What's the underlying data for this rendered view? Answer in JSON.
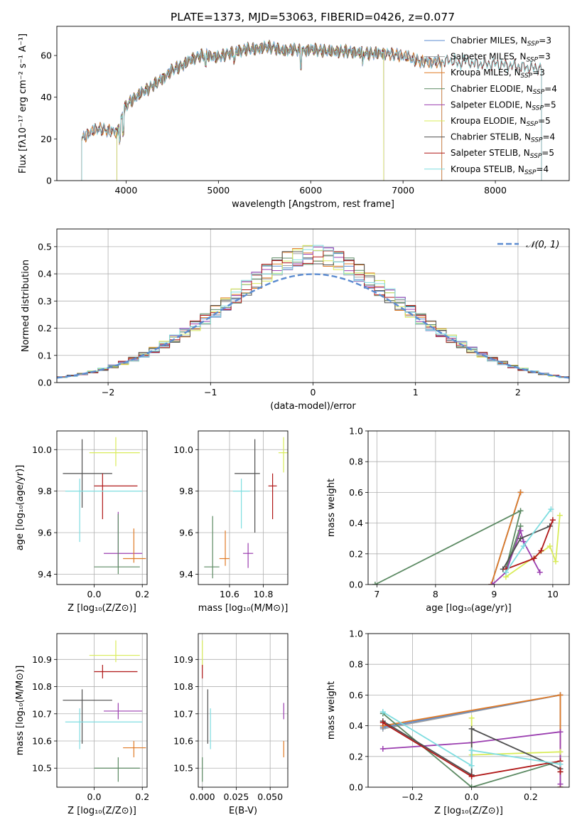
{
  "title": "PLATE=1373, MJD=53063, FIBERID=0426, z=0.077",
  "colors": {
    "c0": "#5b8bd0",
    "c1": "#a0a0a0",
    "c2": "#e07b27",
    "c3": "#5c8a63",
    "c4": "#9b3fb0",
    "c5": "#d9ec5a",
    "c6": "#4f4f4f",
    "c7": "#b01818",
    "c8": "#7fdde0"
  },
  "chart_data": [
    {
      "id": "spectrum",
      "type": "line",
      "xlabel": "wavelength [Angstrom, rest frame]",
      "ylabel": "Flux [fλ10⁻¹⁷ erg cm⁻² s⁻¹ A⁻¹]",
      "xlim": [
        3250,
        8800
      ],
      "ylim": [
        0,
        74
      ],
      "xticks": [
        4000,
        5000,
        6000,
        7000,
        8000
      ],
      "yticks": [
        0,
        20,
        40,
        60
      ],
      "grid": false,
      "legend_position": "top-right",
      "spectrum_profile": [
        [
          3520,
          20
        ],
        [
          3600,
          23
        ],
        [
          3700,
          25
        ],
        [
          3800,
          24
        ],
        [
          3900,
          23
        ],
        [
          3950,
          30
        ],
        [
          4000,
          36
        ],
        [
          4100,
          40
        ],
        [
          4200,
          43
        ],
        [
          4300,
          46
        ],
        [
          4400,
          49
        ],
        [
          4500,
          53
        ],
        [
          4600,
          55
        ],
        [
          4700,
          58
        ],
        [
          4800,
          60
        ],
        [
          4900,
          60
        ],
        [
          5000,
          59
        ],
        [
          5100,
          61
        ],
        [
          5200,
          62
        ],
        [
          5300,
          63
        ],
        [
          5400,
          63
        ],
        [
          5500,
          64
        ],
        [
          5600,
          64
        ],
        [
          5700,
          62
        ],
        [
          5800,
          63
        ],
        [
          5900,
          62
        ],
        [
          6000,
          63
        ],
        [
          6200,
          62
        ],
        [
          6400,
          62
        ],
        [
          6600,
          61
        ],
        [
          6800,
          61
        ],
        [
          7000,
          60
        ],
        [
          7200,
          57
        ],
        [
          7400,
          57
        ],
        [
          7600,
          58
        ],
        [
          7800,
          56
        ],
        [
          8000,
          56
        ],
        [
          8200,
          55
        ],
        [
          8400,
          54
        ],
        [
          8500,
          54
        ]
      ],
      "series": [
        {
          "name": "Chabrier MILES, N_SSP=3",
          "color": "c0",
          "xmin": 3520,
          "xmax": 7420
        },
        {
          "name": "Salpeter MILES, N_SSP=3",
          "color": "c1",
          "xmin": 3520,
          "xmax": 7420
        },
        {
          "name": "Kroupa MILES, N_SSP=3",
          "color": "c2",
          "xmin": 3520,
          "xmax": 7420
        },
        {
          "name": "Chabrier ELODIE, N_SSP=4",
          "color": "c3",
          "xmin": 3900,
          "xmax": 6790
        },
        {
          "name": "Salpeter ELODIE, N_SSP=5",
          "color": "c4",
          "xmin": 3900,
          "xmax": 6790
        },
        {
          "name": "Kroupa ELODIE, N_SSP=5",
          "color": "c5",
          "xmin": 3900,
          "xmax": 6790
        },
        {
          "name": "Chabrier STELIB, N_SSP=4",
          "color": "c6",
          "xmin": 3520,
          "xmax": 8500
        },
        {
          "name": "Salpeter STELIB, N_SSP=5",
          "color": "c7",
          "xmin": 3520,
          "xmax": 8500
        },
        {
          "name": "Kroupa STELIB, N_SSP=4",
          "color": "c8",
          "xmin": 3520,
          "xmax": 8500
        }
      ]
    },
    {
      "id": "residuals",
      "type": "line",
      "xlabel": "(data-model)/error",
      "ylabel": "Normed distribution",
      "xlim": [
        -2.5,
        2.5
      ],
      "ylim": [
        0,
        0.565
      ],
      "xticks": [
        -2,
        -1,
        0,
        1,
        2
      ],
      "yticks": [
        0.0,
        0.1,
        0.2,
        0.3,
        0.4,
        0.5
      ],
      "grid": true,
      "legend_position": "top-right",
      "gaussian_label": "𝒩(0, 1)",
      "gaussian_color": "c0",
      "hist_colors": [
        "c0",
        "c1",
        "c2",
        "c3",
        "c4",
        "c5",
        "c6",
        "c7",
        "c8"
      ],
      "bin_width": 0.1
    },
    {
      "id": "age_vs_Z",
      "type": "scatter",
      "xlabel": "Z [log₁₀(Z/Z⊙)]",
      "ylabel": "age  [log₁₀(age/yr)]",
      "xlim": [
        -0.155,
        0.22
      ],
      "ylim": [
        9.35,
        10.09
      ],
      "xticks": [
        0.0,
        0.2
      ],
      "yticks": [
        9.4,
        9.6,
        9.8,
        10.0
      ],
      "grid": true,
      "points": [
        {
          "color": "c5",
          "x": 0.09,
          "y": 9.985,
          "xlo": -0.02,
          "xhi": 0.19,
          "ylo": 9.92,
          "yhi": 10.06
        },
        {
          "color": "c6",
          "x": -0.05,
          "y": 9.885,
          "xlo": -0.13,
          "xhi": 0.075,
          "ylo": 9.72,
          "yhi": 10.05
        },
        {
          "color": "c7",
          "x": 0.035,
          "y": 9.825,
          "xlo": 0.0,
          "xhi": 0.18,
          "ylo": 9.665,
          "yhi": 9.885
        },
        {
          "color": "c8",
          "x": -0.06,
          "y": 9.8,
          "xlo": -0.12,
          "xhi": 0.2,
          "ylo": 9.555,
          "yhi": 9.86
        },
        {
          "color": "c4",
          "x": 0.1,
          "y": 9.5,
          "xlo": 0.04,
          "xhi": 0.2,
          "ylo": 9.44,
          "yhi": 9.7
        },
        {
          "color": "c2",
          "x": 0.165,
          "y": 9.475,
          "xlo": 0.12,
          "xhi": 0.215,
          "ylo": 9.455,
          "yhi": 9.62
        },
        {
          "color": "c3",
          "x": 0.1,
          "y": 9.435,
          "xlo": 0.0,
          "xhi": 0.19,
          "ylo": 9.4,
          "yhi": 9.69
        }
      ]
    },
    {
      "id": "age_vs_mass",
      "type": "scatter",
      "xlabel": "mass [log₁₀(M/M⊙)]",
      "ylabel": "",
      "xlim": [
        10.415,
        10.945
      ],
      "ylim": [
        9.35,
        10.09
      ],
      "xticks": [
        10.6,
        10.8
      ],
      "yticks": [
        9.4,
        9.6,
        9.8,
        10.0
      ],
      "grid": true,
      "points": [
        {
          "color": "c5",
          "x": 10.92,
          "y": 9.985,
          "xlo": 10.89,
          "xhi": 10.945,
          "ylo": 9.89,
          "yhi": 10.06
        },
        {
          "color": "c6",
          "x": 10.75,
          "y": 9.885,
          "xlo": 10.63,
          "xhi": 10.78,
          "ylo": 9.6,
          "yhi": 10.05
        },
        {
          "color": "c7",
          "x": 10.855,
          "y": 9.825,
          "xlo": 10.83,
          "xhi": 10.88,
          "ylo": 9.665,
          "yhi": 9.885
        },
        {
          "color": "c8",
          "x": 10.67,
          "y": 9.8,
          "xlo": 10.62,
          "xhi": 10.72,
          "ylo": 9.62,
          "yhi": 9.86
        },
        {
          "color": "c4",
          "x": 10.71,
          "y": 9.5,
          "xlo": 10.68,
          "xhi": 10.74,
          "ylo": 9.43,
          "yhi": 9.55
        },
        {
          "color": "c2",
          "x": 10.575,
          "y": 9.475,
          "xlo": 10.54,
          "xhi": 10.6,
          "ylo": 9.44,
          "yhi": 9.61
        },
        {
          "color": "c3",
          "x": 10.5,
          "y": 9.435,
          "xlo": 10.45,
          "xhi": 10.54,
          "ylo": 9.38,
          "yhi": 9.68
        }
      ]
    },
    {
      "id": "mass_weight_vs_age",
      "type": "line",
      "xlabel": "age  [log₁₀(age/yr)]",
      "ylabel": "mass weight",
      "xlim": [
        6.85,
        10.28
      ],
      "ylim": [
        0,
        1
      ],
      "xticks": [
        7,
        8,
        9,
        10
      ],
      "yticks": [
        0.0,
        0.2,
        0.4,
        0.6,
        0.8,
        1.0
      ],
      "grid": true,
      "series": [
        {
          "color": "c1",
          "points": [
            [
              8.95,
              0.0
            ],
            [
              9.45,
              0.6
            ]
          ]
        },
        {
          "color": "c0",
          "points": [
            [
              8.95,
              0.0
            ],
            [
              9.45,
              0.6
            ]
          ]
        },
        {
          "color": "c2",
          "points": [
            [
              8.95,
              0.0
            ],
            [
              9.45,
              0.6
            ]
          ]
        },
        {
          "color": "c3",
          "points": [
            [
              6.97,
              0.0
            ],
            [
              9.45,
              0.48
            ],
            [
              9.2,
              0.1
            ],
            [
              9.45,
              0.38
            ]
          ]
        },
        {
          "color": "c4",
          "points": [
            [
              8.97,
              0.0
            ],
            [
              9.2,
              0.08
            ],
            [
              9.45,
              0.35
            ],
            [
              9.5,
              0.28
            ],
            [
              9.78,
              0.08
            ]
          ]
        },
        {
          "color": "c5",
          "points": [
            [
              9.2,
              0.05
            ],
            [
              9.95,
              0.25
            ],
            [
              10.05,
              0.15
            ],
            [
              10.12,
              0.45
            ]
          ]
        },
        {
          "color": "c6",
          "points": [
            [
              9.15,
              0.1
            ],
            [
              9.45,
              0.3
            ],
            [
              9.95,
              0.38
            ]
          ]
        },
        {
          "color": "c7",
          "points": [
            [
              9.2,
              0.1
            ],
            [
              9.68,
              0.17
            ],
            [
              9.8,
              0.22
            ],
            [
              10.0,
              0.42
            ]
          ]
        },
        {
          "color": "c8",
          "points": [
            [
              9.2,
              0.08
            ],
            [
              9.5,
              0.25
            ],
            [
              9.97,
              0.49
            ]
          ]
        }
      ]
    },
    {
      "id": "mass_vs_Z",
      "type": "scatter",
      "xlabel": "Z [log₁₀(Z/Z⊙)]",
      "ylabel": "mass [log₁₀(M/M⊙)]",
      "xlim": [
        -0.155,
        0.22
      ],
      "ylim": [
        10.43,
        10.995
      ],
      "xticks": [
        0.0,
        0.2
      ],
      "yticks": [
        10.5,
        10.6,
        10.7,
        10.8,
        10.9
      ],
      "grid": true,
      "points": [
        {
          "color": "c5",
          "x": 0.09,
          "y": 10.915,
          "xlo": -0.02,
          "xhi": 0.19,
          "ylo": 10.89,
          "yhi": 10.97
        },
        {
          "color": "c7",
          "x": 0.035,
          "y": 10.855,
          "xlo": 0.0,
          "xhi": 0.18,
          "ylo": 10.83,
          "yhi": 10.88
        },
        {
          "color": "c6",
          "x": -0.05,
          "y": 10.75,
          "xlo": -0.13,
          "xhi": 0.075,
          "ylo": 10.59,
          "yhi": 10.79
        },
        {
          "color": "c4",
          "x": 0.1,
          "y": 10.71,
          "xlo": 0.04,
          "xhi": 0.2,
          "ylo": 10.68,
          "yhi": 10.74
        },
        {
          "color": "c8",
          "x": -0.06,
          "y": 10.67,
          "xlo": -0.12,
          "xhi": 0.2,
          "ylo": 10.57,
          "yhi": 10.72
        },
        {
          "color": "c2",
          "x": 0.165,
          "y": 10.575,
          "xlo": 0.12,
          "xhi": 0.215,
          "ylo": 10.54,
          "yhi": 10.6
        },
        {
          "color": "c3",
          "x": 0.1,
          "y": 10.5,
          "xlo": 0.0,
          "xhi": 0.19,
          "ylo": 10.45,
          "yhi": 10.54
        }
      ]
    },
    {
      "id": "mass_vs_ebv",
      "type": "scatter",
      "xlabel": "E(B-V)",
      "ylabel": "",
      "xlim": [
        -0.003,
        0.063
      ],
      "ylim": [
        10.43,
        10.995
      ],
      "xticks": [
        0.0,
        0.025,
        0.05
      ],
      "yticks": [
        10.5,
        10.6,
        10.7,
        10.8,
        10.9
      ],
      "grid": true,
      "points": [
        {
          "color": "c5",
          "x": 0.0,
          "y": 10.915,
          "xlo": 0.0,
          "xhi": 0.0,
          "ylo": 10.87,
          "yhi": 10.97
        },
        {
          "color": "c7",
          "x": 0.0,
          "y": 10.855,
          "xlo": 0.0,
          "xhi": 0.0,
          "ylo": 10.83,
          "yhi": 10.88
        },
        {
          "color": "c6",
          "x": 0.004,
          "y": 10.75,
          "xlo": 0.004,
          "xhi": 0.004,
          "ylo": 10.59,
          "yhi": 10.79
        },
        {
          "color": "c4",
          "x": 0.06,
          "y": 10.71,
          "xlo": 0.06,
          "xhi": 0.06,
          "ylo": 10.68,
          "yhi": 10.74
        },
        {
          "color": "c8",
          "x": 0.006,
          "y": 10.67,
          "xlo": 0.006,
          "xhi": 0.006,
          "ylo": 10.57,
          "yhi": 10.72
        },
        {
          "color": "c2",
          "x": 0.06,
          "y": 10.575,
          "xlo": 0.06,
          "xhi": 0.06,
          "ylo": 10.54,
          "yhi": 10.6
        },
        {
          "color": "c3",
          "x": 0.0,
          "y": 10.5,
          "xlo": 0.0,
          "xhi": 0.0,
          "ylo": 10.45,
          "yhi": 10.54
        }
      ]
    },
    {
      "id": "mass_weight_vs_Z",
      "type": "line",
      "xlabel": "Z [log₁₀(Z/Z⊙)]",
      "ylabel": "mass weight",
      "xlim": [
        -0.35,
        0.33
      ],
      "ylim": [
        0,
        1
      ],
      "xticks": [
        -0.2,
        0.0,
        0.2
      ],
      "yticks": [
        0.0,
        0.2,
        0.4,
        0.6,
        0.8,
        1.0
      ],
      "grid": true,
      "series": [
        {
          "color": "c1",
          "points": [
            [
              -0.3,
              0.38
            ],
            [
              0.3,
              0.6
            ],
            [
              0.3,
              0.0
            ]
          ]
        },
        {
          "color": "c0",
          "points": [
            [
              -0.3,
              0.39
            ],
            [
              0.3,
              0.6
            ],
            [
              0.3,
              0.0
            ]
          ]
        },
        {
          "color": "c2",
          "points": [
            [
              -0.3,
              0.4
            ],
            [
              0.3,
              0.6
            ],
            [
              0.3,
              0.0
            ]
          ]
        },
        {
          "color": "c3",
          "points": [
            [
              -0.3,
              0.48
            ],
            [
              0.0,
              0.0
            ],
            [
              0.3,
              0.17
            ],
            [
              0.3,
              0.1
            ]
          ]
        },
        {
          "color": "c4",
          "points": [
            [
              -0.3,
              0.25
            ],
            [
              0.0,
              0.29
            ],
            [
              0.3,
              0.36
            ],
            [
              0.3,
              0.02
            ]
          ]
        },
        {
          "color": "c5",
          "points": [
            [
              0.0,
              0.45
            ],
            [
              0.0,
              0.21
            ],
            [
              0.3,
              0.23
            ]
          ]
        },
        {
          "color": "c6",
          "points": [
            [
              -0.3,
              0.43
            ],
            [
              0.0,
              0.08
            ],
            [
              0.0,
              0.38
            ],
            [
              0.3,
              0.12
            ]
          ]
        },
        {
          "color": "c7",
          "points": [
            [
              -0.3,
              0.42
            ],
            [
              0.0,
              0.07
            ],
            [
              0.3,
              0.17
            ],
            [
              0.3,
              0.1
            ]
          ]
        },
        {
          "color": "c8",
          "points": [
            [
              -0.3,
              0.49
            ],
            [
              0.0,
              0.14
            ],
            [
              0.0,
              0.24
            ],
            [
              0.3,
              0.15
            ]
          ]
        }
      ]
    }
  ]
}
